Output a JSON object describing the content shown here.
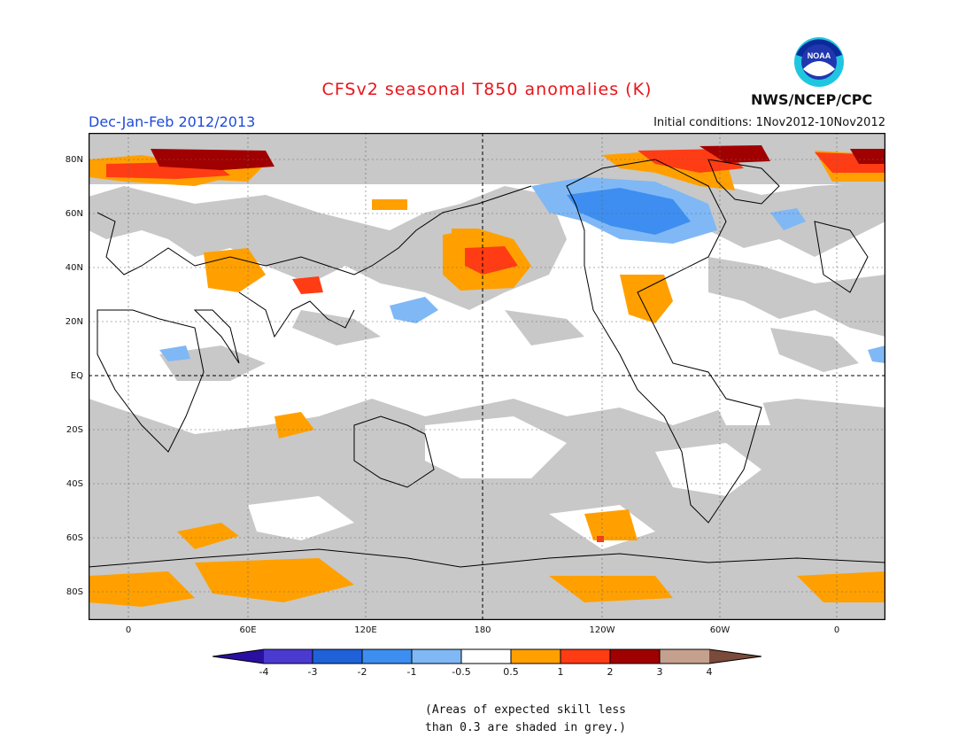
{
  "title": "CFSv2 seasonal T850 anomalies (K)",
  "season": "Dec-Jan-Feb 2012/2013",
  "initial_conditions": "Initial conditions: 1Nov2012-10Nov2012",
  "agency": "NWS/NCEP/CPC",
  "logo_text": "NOAA",
  "lat_labels": [
    "80N",
    "60N",
    "40N",
    "20N",
    "EQ",
    "20S",
    "40S",
    "60S",
    "80S"
  ],
  "lon_labels": [
    "0",
    "60E",
    "120E",
    "180",
    "120W",
    "60W",
    "0"
  ],
  "colorbar": {
    "labels": [
      "-4",
      "-3",
      "-2",
      "-1",
      "-0.5",
      "0.5",
      "1",
      "2",
      "3",
      "4"
    ],
    "colors": [
      "#2a0fa0",
      "#4a3ad0",
      "#1f62d8",
      "#3d8ef0",
      "#7fb8f5",
      "#ffffff",
      "#ffa000",
      "#ff3c14",
      "#a00000",
      "#c4a08e",
      "#7a4a3a"
    ]
  },
  "note_line1": "(Areas of expected skill less",
  "note_line2": "than 0.3 are shaded in grey.)",
  "colors": {
    "skill_grey": "#c8c8c8",
    "warm_1": "#ffa000",
    "warm_2": "#ff3c14",
    "warm_3": "#a00000",
    "cool_1": "#7fb8f5",
    "cool_2": "#3d8ef0"
  }
}
